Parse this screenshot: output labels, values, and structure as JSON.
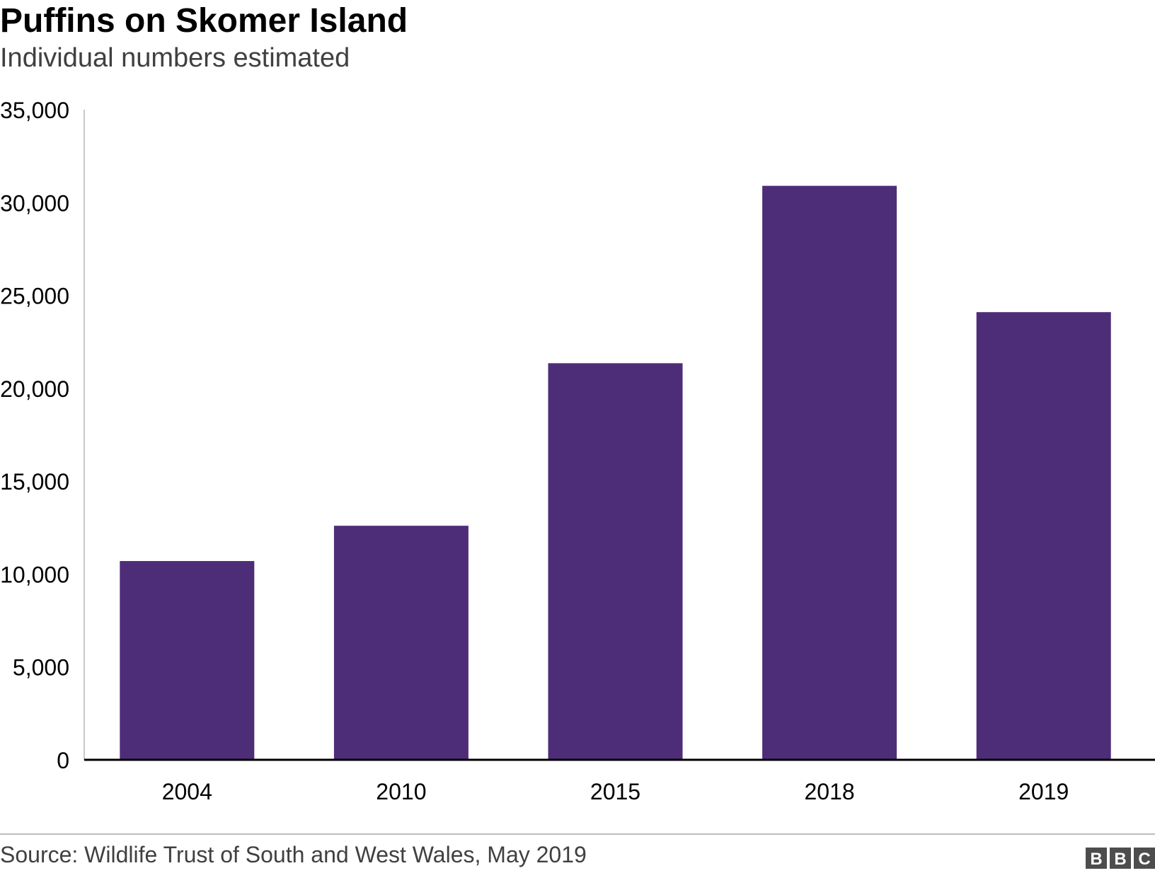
{
  "header": {
    "title": "Puffins on Skomer Island",
    "subtitle": "Individual numbers estimated"
  },
  "footer": {
    "source": "Source: Wildlife Trust of South and West Wales, May 2019",
    "logo_text": "BBC"
  },
  "colors": {
    "bar": "#4e2d78",
    "axis": "#000000",
    "y_axis_line": "#c8c8c8",
    "text": "#000000",
    "subtle_text": "#404040"
  },
  "chart_data": {
    "type": "bar",
    "title": "Puffins on Skomer Island",
    "subtitle": "Individual numbers estimated",
    "categories": [
      "2004",
      "2010",
      "2015",
      "2018",
      "2019"
    ],
    "values": [
      10700,
      12600,
      21350,
      30900,
      24100
    ],
    "xlabel": "",
    "ylabel": "",
    "ylim": [
      0,
      35000
    ],
    "yticks": [
      0,
      5000,
      10000,
      15000,
      20000,
      25000,
      30000,
      35000
    ],
    "ytick_labels": [
      "0",
      "5,000",
      "10,000",
      "15,000",
      "20,000",
      "25,000",
      "30,000",
      "35,000"
    ],
    "grid": false,
    "legend": "none"
  }
}
